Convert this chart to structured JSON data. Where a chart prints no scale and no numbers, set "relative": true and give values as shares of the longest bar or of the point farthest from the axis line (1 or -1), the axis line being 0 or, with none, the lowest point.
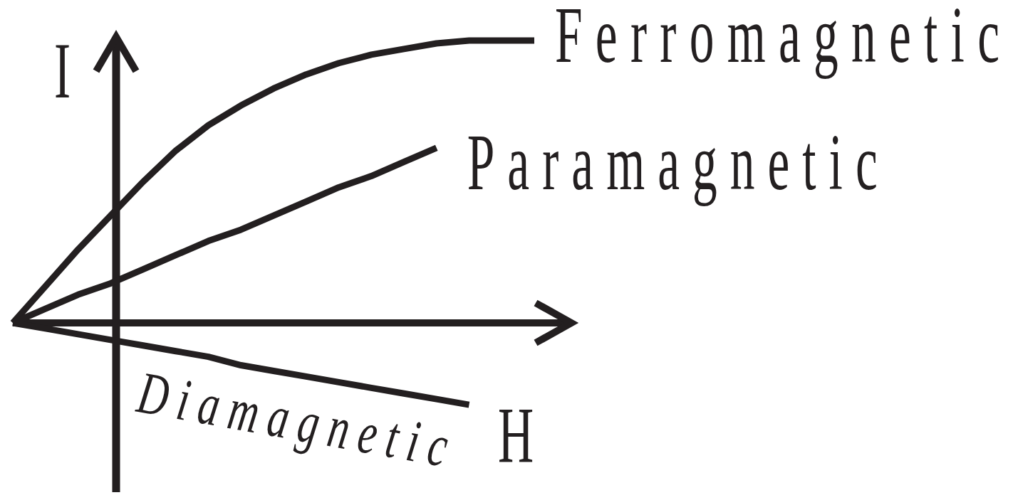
{
  "chart_data": {
    "type": "line",
    "relative": true,
    "xlabel": "H",
    "ylabel": "I",
    "categories": [
      null,
      null,
      null,
      null,
      null,
      null,
      null,
      null,
      null,
      null,
      null,
      null,
      null,
      null,
      null,
      null,
      null
    ],
    "series": [
      {
        "name": "Ferromagnetic",
        "color": "#231f20",
        "values": [
          0,
          0.13,
          0.26,
          0.38,
          0.5,
          0.61,
          0.7,
          0.77,
          0.83,
          0.88,
          0.92,
          0.95,
          0.97,
          0.99,
          1,
          1,
          1
        ]
      },
      {
        "name": "Paramagnetic",
        "color": "#231f20",
        "values": [
          0,
          0.05,
          0.1,
          0.14,
          0.19,
          0.24,
          0.29,
          0.33,
          0.38,
          0.43,
          0.48,
          0.52,
          0.57,
          0.62,
          null,
          null,
          null
        ]
      },
      {
        "name": "Diamagnetic",
        "color": "#231f20",
        "values": [
          0,
          -0.02,
          -0.04,
          -0.06,
          -0.08,
          -0.1,
          -0.12,
          -0.15,
          -0.17,
          -0.19,
          -0.21,
          -0.23,
          -0.25,
          -0.27,
          -0.29,
          null,
          null
        ]
      }
    ]
  }
}
